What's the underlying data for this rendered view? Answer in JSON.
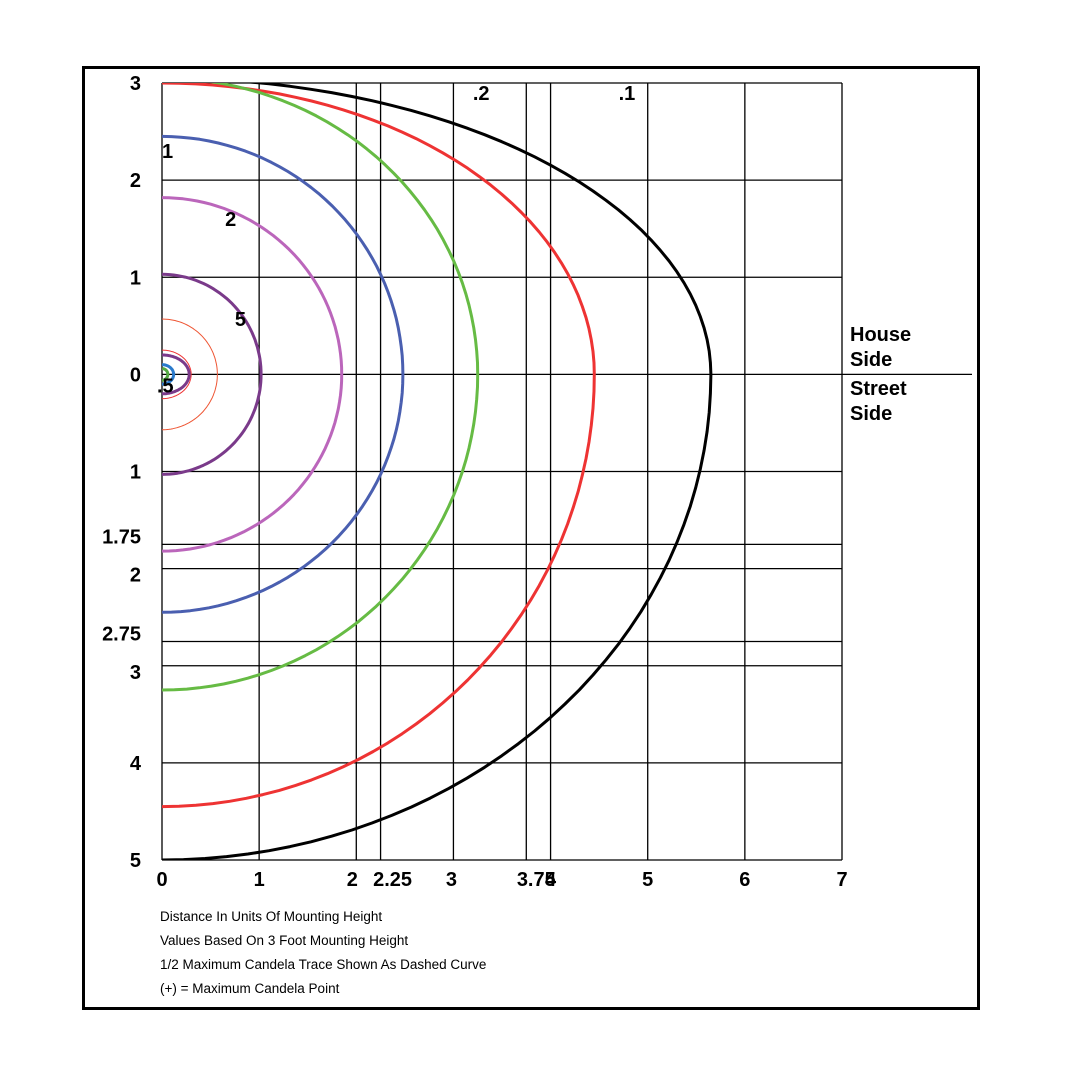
{
  "chart_data": {
    "type": "line",
    "title": "",
    "xlim": [
      0,
      7
    ],
    "ylim": [
      -5,
      3
    ],
    "x_gridlines": [
      0,
      1,
      2,
      2.25,
      3,
      3.75,
      4,
      5,
      6,
      7
    ],
    "y_gridlines": [
      3,
      2,
      1,
      0,
      -1,
      -1.75,
      -2,
      -2.75,
      -3,
      -4,
      -5
    ],
    "x_tick_labels": [
      {
        "value": 0,
        "label": "0"
      },
      {
        "value": 1,
        "label": "1"
      },
      {
        "value": 2,
        "label": "2"
      },
      {
        "value": 2.25,
        "label": "2.25"
      },
      {
        "value": 3,
        "label": "3"
      },
      {
        "value": 3.75,
        "label": "3.75"
      },
      {
        "value": 4,
        "label": "4"
      },
      {
        "value": 5,
        "label": "5"
      },
      {
        "value": 6,
        "label": "6"
      },
      {
        "value": 7,
        "label": "7"
      }
    ],
    "y_tick_labels": [
      {
        "value": 3,
        "label": "3"
      },
      {
        "value": 2,
        "label": "2"
      },
      {
        "value": 1,
        "label": "1"
      },
      {
        "value": 0,
        "label": "0"
      },
      {
        "value": -1,
        "label": "1"
      },
      {
        "value": -1.75,
        "label": "1.75"
      },
      {
        "value": -2,
        "label": "2"
      },
      {
        "value": -2.75,
        "label": "2.75"
      },
      {
        "value": -3,
        "label": "3"
      },
      {
        "value": -4,
        "label": "4"
      },
      {
        "value": -5,
        "label": "5"
      }
    ],
    "series": [
      {
        "name": ".1",
        "color": "#000000",
        "x_max": 5.65,
        "y_top": 3.05,
        "y_bottom": -5.0,
        "top_label_x": 4.7
      },
      {
        "name": ".2",
        "color": "#ee3333",
        "x_max": 4.45,
        "y_top": 3.0,
        "y_bottom": -4.45,
        "top_label_x": 3.2
      },
      {
        "name": "",
        "color": "#66bb44",
        "x_max": 3.25,
        "y_top": 3.05,
        "y_bottom": -3.25
      },
      {
        "name": "1",
        "color": "#4a5fb0",
        "x_max": 2.48,
        "y_top": 2.45,
        "y_bottom": -2.45,
        "label_x": 0.0,
        "label_y": 2.3
      },
      {
        "name": "2",
        "color": "#bb66bb",
        "x_max": 1.85,
        "y_top": 1.82,
        "y_bottom": -1.82,
        "label_x": 0.65,
        "label_y": 1.6
      },
      {
        "name": "5",
        "color": "#7a3a8a",
        "x_max": 1.02,
        "y_top": 1.03,
        "y_bottom": -1.03,
        "label_x": 0.75,
        "label_y": 0.57
      },
      {
        "name": "",
        "color": "#ee5533",
        "x_max": 0.57,
        "y_top": 0.57,
        "y_bottom": -0.57,
        "stroke": 1
      },
      {
        "name": "",
        "color": "#ee3333",
        "x_max": 0.3,
        "y_top": 0.25,
        "y_bottom": -0.25,
        "stroke": 1
      },
      {
        "name": "",
        "color": "#7a3a8a",
        "x_max": 0.28,
        "y_top": 0.2,
        "y_bottom": -0.2
      },
      {
        "name": "",
        "color": "#2a7acc",
        "x_max": 0.12,
        "y_top": 0.1,
        "y_bottom": -0.1
      },
      {
        "name": "",
        "color": "#55aa44",
        "x_max": 0.06,
        "y_top": 0.06,
        "y_bottom": -0.06
      }
    ],
    "center_label": ".5",
    "side_labels": {
      "house": [
        "House",
        "Side"
      ],
      "street": [
        "Street",
        "Side"
      ]
    },
    "notes": [
      "Distance In Units Of Mounting Height",
      "Values Based On 3 Foot Mounting Height",
      "1/2 Maximum Candela Trace Shown As Dashed Curve",
      "(+) = Maximum Candela Point"
    ]
  }
}
